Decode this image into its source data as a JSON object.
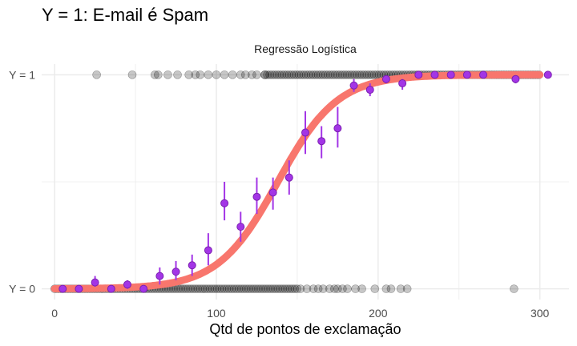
{
  "chart_data": {
    "type": "scatter",
    "title": "Y = 1: E-mail é Spam",
    "subtitle": "Regressão Logística",
    "xlabel": "Qtd de pontos de exclamação",
    "ylabel": "",
    "xlim": [
      -8,
      318
    ],
    "ylim": [
      -0.05,
      1.05
    ],
    "x_ticks": [
      0,
      100,
      200,
      300
    ],
    "x_tick_labels": [
      "0",
      "100",
      "200",
      "300"
    ],
    "y_ticks": [
      0,
      1
    ],
    "y_tick_labels": [
      "Y = 0",
      "Y = 1"
    ],
    "grid": true,
    "logistic_curve": {
      "midpoint": 138,
      "scale": 18.5,
      "x_range": [
        0,
        300
      ]
    },
    "observations": {
      "y0_dense_range": [
        0,
        150
      ],
      "y0_sparse_x": [
        152,
        156,
        160,
        163,
        166,
        170,
        173,
        175,
        178,
        181,
        186,
        190,
        198,
        205,
        208,
        214,
        218,
        284
      ],
      "y1_sparse_x": [
        26,
        48,
        62,
        64,
        70,
        76,
        83,
        87,
        90,
        95,
        100,
        105,
        110,
        115,
        118,
        122,
        125,
        130
      ],
      "y1_dense_range": [
        130,
        300
      ]
    },
    "binned_means": [
      {
        "x": 5,
        "y": 0.0,
        "lo": -0.01,
        "hi": 0.01
      },
      {
        "x": 15,
        "y": 0.0,
        "lo": -0.01,
        "hi": 0.01
      },
      {
        "x": 25,
        "y": 0.03,
        "lo": 0.01,
        "hi": 0.06
      },
      {
        "x": 35,
        "y": 0.0,
        "lo": -0.01,
        "hi": 0.01
      },
      {
        "x": 45,
        "y": 0.02,
        "lo": 0.0,
        "hi": 0.04
      },
      {
        "x": 55,
        "y": 0.0,
        "lo": -0.01,
        "hi": 0.01
      },
      {
        "x": 65,
        "y": 0.06,
        "lo": 0.02,
        "hi": 0.1
      },
      {
        "x": 75,
        "y": 0.08,
        "lo": 0.04,
        "hi": 0.13
      },
      {
        "x": 85,
        "y": 0.11,
        "lo": 0.06,
        "hi": 0.16
      },
      {
        "x": 95,
        "y": 0.18,
        "lo": 0.11,
        "hi": 0.26
      },
      {
        "x": 105,
        "y": 0.4,
        "lo": 0.32,
        "hi": 0.5
      },
      {
        "x": 115,
        "y": 0.29,
        "lo": 0.22,
        "hi": 0.36
      },
      {
        "x": 125,
        "y": 0.43,
        "lo": 0.35,
        "hi": 0.52
      },
      {
        "x": 135,
        "y": 0.45,
        "lo": 0.37,
        "hi": 0.52
      },
      {
        "x": 145,
        "y": 0.52,
        "lo": 0.44,
        "hi": 0.6
      },
      {
        "x": 155,
        "y": 0.73,
        "lo": 0.63,
        "hi": 0.83
      },
      {
        "x": 165,
        "y": 0.69,
        "lo": 0.61,
        "hi": 0.76
      },
      {
        "x": 175,
        "y": 0.75,
        "lo": 0.66,
        "hi": 0.85
      },
      {
        "x": 185,
        "y": 0.95,
        "lo": 0.92,
        "hi": 0.98
      },
      {
        "x": 195,
        "y": 0.93,
        "lo": 0.9,
        "hi": 0.96
      },
      {
        "x": 205,
        "y": 0.98,
        "lo": 0.96,
        "hi": 0.99
      },
      {
        "x": 215,
        "y": 0.96,
        "lo": 0.93,
        "hi": 0.98
      },
      {
        "x": 225,
        "y": 1.0,
        "lo": 0.99,
        "hi": 1.01
      },
      {
        "x": 235,
        "y": 1.0,
        "lo": 0.99,
        "hi": 1.01
      },
      {
        "x": 245,
        "y": 1.0,
        "lo": 0.99,
        "hi": 1.01
      },
      {
        "x": 255,
        "y": 1.0,
        "lo": 0.99,
        "hi": 1.01
      },
      {
        "x": 265,
        "y": 1.0,
        "lo": 0.99,
        "hi": 1.01
      },
      {
        "x": 285,
        "y": 0.98,
        "lo": 0.96,
        "hi": 0.99
      },
      {
        "x": 305,
        "y": 1.0,
        "lo": 0.99,
        "hi": 1.01
      }
    ],
    "colors": {
      "observation": "#000000",
      "curve": "#f8766d",
      "binned_mean": "#a335e6",
      "grid": "#ebebeb"
    }
  }
}
